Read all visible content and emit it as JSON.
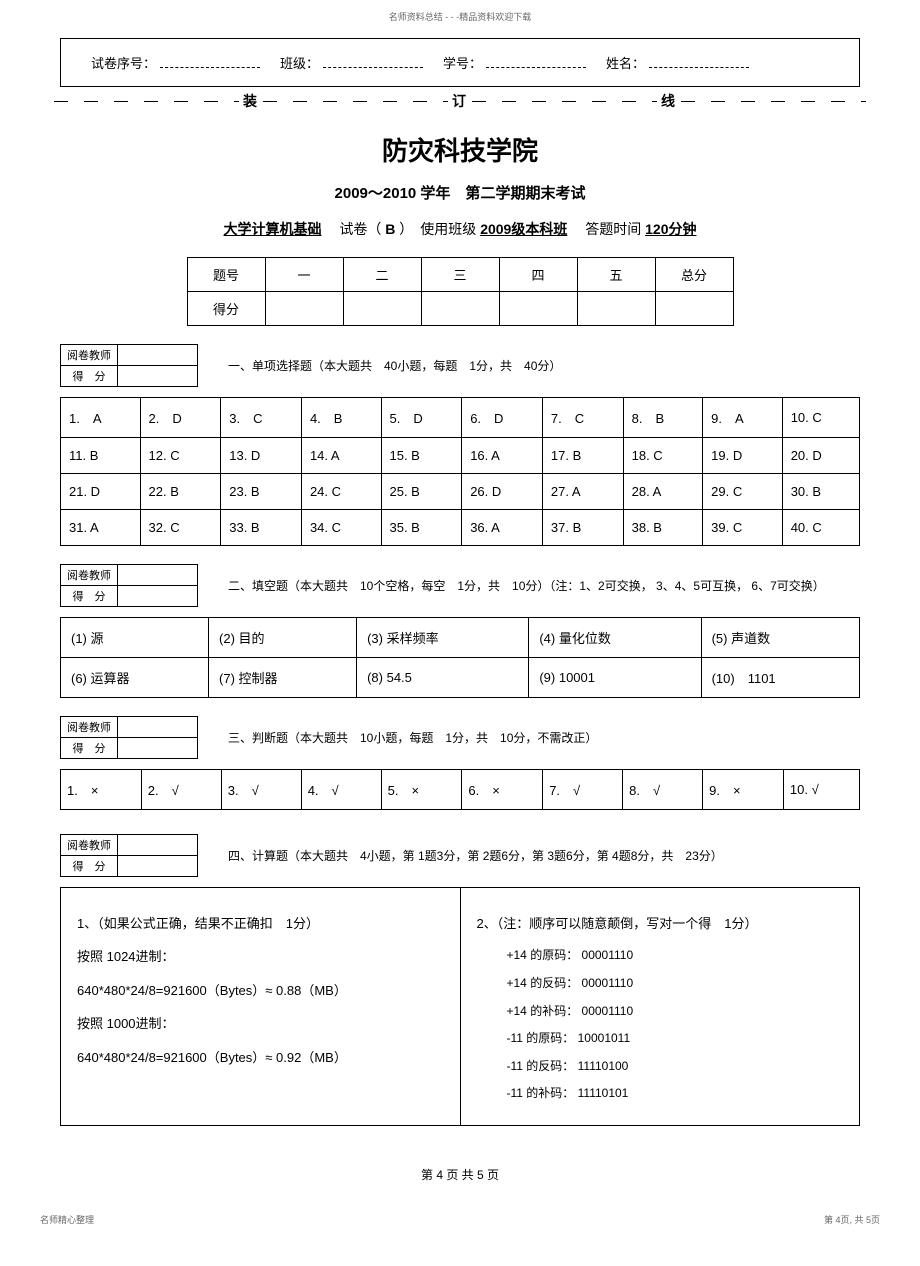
{
  "header_tiny": "名师资料总结 - - -精品资料欢迎下载",
  "info_box": {
    "fields": [
      {
        "label": "试卷序号："
      },
      {
        "label": "班级："
      },
      {
        "label": "学号："
      },
      {
        "label": "姓名："
      }
    ]
  },
  "dash_labels": {
    "zhuang": "装",
    "ding": "订",
    "xian": "线"
  },
  "title": "防灾科技学院",
  "subtitle": "2009～2010 学年　第二学期期末考试",
  "exam_info": {
    "course": "大学计算机基础",
    "paper_label": "　试卷（",
    "paper_code": "B",
    "use_label": "）　使用班级",
    "use_class": " 2009级本科班",
    "time_label": "　答题时间",
    "time_value": " 120分钟"
  },
  "score_summary": {
    "header_label": "题号",
    "cols": [
      "一",
      "二",
      "三",
      "四",
      "五",
      "总分"
    ],
    "score_label": "得分"
  },
  "grader": {
    "teacher": "阅卷教师",
    "score": "得　分"
  },
  "section1": {
    "desc": "一、单项选择题（本大题共　40小题，每题　1分，共　40分）",
    "answers": [
      [
        "1.　A",
        "2.　D",
        "3.　C",
        "4.　B",
        "5.　D",
        "6.　D",
        "7.　C",
        "8.　B",
        "9.　A",
        "10. C"
      ],
      [
        "11. B",
        "12. C",
        "13. D",
        "14. A",
        "15. B",
        "16. A",
        "17. B",
        "18. C",
        "19. D",
        "20. D"
      ],
      [
        "21. D",
        "22. B",
        "23. B",
        "24. C",
        "25. B",
        "26. D",
        "27. A",
        "28. A",
        "29. C",
        "30. B"
      ],
      [
        "31. A",
        "32. C",
        "33. B",
        "34. C",
        "35. B",
        "36. A",
        "37. B",
        "38. B",
        "39. C",
        "40. C"
      ]
    ]
  },
  "section2": {
    "desc": "二、填空题（本大题共　10个空格，每空　1分，共　10分）（注：1、2可交换， 3、4、5可互换， 6、7可交换）",
    "rows": [
      [
        "(1) 源",
        "(2) 目的",
        "(3) 采样频率",
        "(4) 量化位数",
        "(5) 声道数"
      ],
      [
        "(6) 运算器",
        "(7) 控制器",
        "(8) 54.5",
        "(9) 10001",
        "(10)　1101"
      ]
    ]
  },
  "section3": {
    "desc": "三、判断题（本大题共　10小题，每题　1分，共　10分，不需改正）",
    "row": [
      "1.　×",
      "2.　√",
      "3.　√",
      "4.　√",
      "5.　×",
      "6.　×",
      "7.　√",
      "8.　√",
      "9.　×",
      "10. √"
    ]
  },
  "section4": {
    "desc": "四、计算题（本大题共　4小题，第 1题3分，第 2题6分，第 3题6分，第 4题8分，共　23分）",
    "left": {
      "title": "1、（如果公式正确，结果不正确扣　1分）",
      "lines": [
        "按照 1024进制：",
        "640*480*24/8=921600（Bytes）≈ 0.88（MB）",
        "按照 1000进制：",
        "640*480*24/8=921600（Bytes）≈ 0.92（MB）"
      ]
    },
    "right": {
      "title": "2、（注：顺序可以随意颠倒，写对一个得　1分）",
      "lines": [
        "+14 的原码： 00001110",
        "+14 的反码： 00001110",
        "+14 的补码： 00001110",
        "-11 的原码： 10001011",
        "-11 的反码： 11110100",
        "-11 的补码： 11110101"
      ]
    }
  },
  "footer": "第 4 页 共 5 页",
  "bottom": {
    "left": "名师精心整理",
    "right": "第 4页, 共 5页"
  }
}
